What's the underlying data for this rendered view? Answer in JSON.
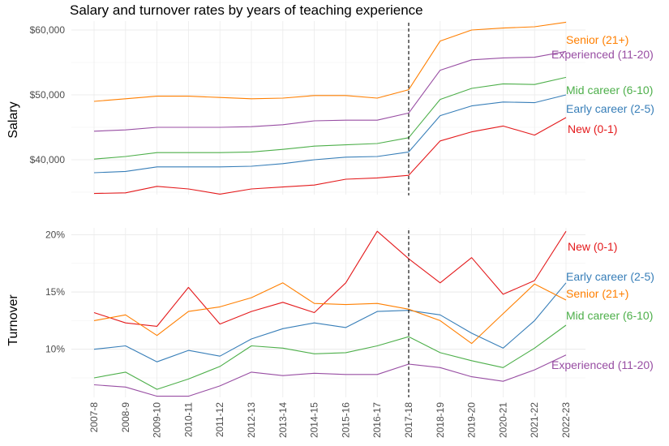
{
  "chart_data": {
    "title": "Salary and turnover rates by years of teaching experience",
    "x_categories": [
      "2007-8",
      "2008-9",
      "2009-10",
      "2010-11",
      "2011-12",
      "2012-13",
      "2013-14",
      "2014-15",
      "2015-16",
      "2016-17",
      "2017-18",
      "2018-19",
      "2019-20",
      "2020-21",
      "2021-22",
      "2022-23"
    ],
    "reference_line": {
      "x": "2017-18",
      "style": "dashed"
    },
    "series_colors": {
      "New (0-1)": "#E41A1C",
      "Early career (2-5)": "#377EB8",
      "Mid career (6-10)": "#4DAF4A",
      "Experienced (11-20)": "#984EA3",
      "Senior (21+)": "#FF7F00"
    },
    "panels": [
      {
        "type": "line",
        "ylabel": "Salary",
        "ylim": [
          34500,
          61500
        ],
        "yticks": [
          40000,
          50000,
          60000
        ],
        "ytick_labels": [
          "$40,000",
          "$50,000",
          "$60,000"
        ],
        "grid": true,
        "series": [
          {
            "name": "Senior (21+)",
            "values": [
              49000,
              49400,
              49800,
              49800,
              49600,
              49400,
              49500,
              49900,
              49900,
              49500,
              50800,
              58300,
              60000,
              60300,
              60500,
              61200
            ]
          },
          {
            "name": "Experienced (11-20)",
            "values": [
              44400,
              44600,
              45000,
              45000,
              45000,
              45100,
              45400,
              46000,
              46100,
              46100,
              47200,
              53800,
              55400,
              55700,
              55800,
              56700
            ]
          },
          {
            "name": "Mid career (6-10)",
            "values": [
              40100,
              40500,
              41100,
              41100,
              41100,
              41200,
              41600,
              42100,
              42300,
              42500,
              43400,
              49300,
              51000,
              51700,
              51600,
              52700
            ]
          },
          {
            "name": "Early career (2-5)",
            "values": [
              38000,
              38200,
              38900,
              38900,
              38900,
              39000,
              39400,
              40000,
              40400,
              40500,
              41200,
              46800,
              48300,
              48900,
              48800,
              50000
            ]
          },
          {
            "name": "New (0-1)",
            "values": [
              34800,
              34900,
              35900,
              35500,
              34700,
              35500,
              35800,
              36100,
              37000,
              37200,
              37600,
              42900,
              44300,
              45200,
              43800,
              46500
            ]
          }
        ]
      },
      {
        "type": "line",
        "ylabel": "Turnover",
        "ylim": [
          5.8,
          20.6
        ],
        "yticks": [
          10,
          15,
          20
        ],
        "ytick_labels": [
          "10%",
          "15%",
          "20%"
        ],
        "grid": true,
        "series": [
          {
            "name": "New (0-1)",
            "values": [
              13.2,
              12.3,
              12.0,
              15.4,
              12.2,
              13.3,
              14.1,
              13.2,
              15.8,
              20.3,
              17.9,
              15.8,
              18.0,
              14.8,
              16.0,
              20.3
            ]
          },
          {
            "name": "Early career (2-5)",
            "values": [
              10.0,
              10.3,
              8.9,
              9.9,
              9.4,
              10.9,
              11.8,
              12.3,
              11.9,
              13.3,
              13.4,
              13.0,
              11.4,
              10.1,
              12.5,
              15.8
            ]
          },
          {
            "name": "Senior (21+)",
            "values": [
              12.5,
              13.0,
              11.2,
              13.3,
              13.7,
              14.5,
              15.8,
              14.0,
              13.9,
              14.0,
              13.5,
              12.5,
              10.5,
              13.1,
              15.7,
              14.3
            ]
          },
          {
            "name": "Mid career (6-10)",
            "values": [
              7.5,
              8.0,
              6.5,
              7.4,
              8.5,
              10.3,
              10.1,
              9.6,
              9.7,
              10.3,
              11.1,
              9.7,
              9.0,
              8.4,
              10.1,
              12.1
            ]
          },
          {
            "name": "Experienced (11-20)",
            "values": [
              6.9,
              6.7,
              5.9,
              5.9,
              6.8,
              8.0,
              7.7,
              7.9,
              7.8,
              7.8,
              8.7,
              8.4,
              7.6,
              7.2,
              8.2,
              9.5
            ]
          }
        ]
      }
    ]
  }
}
